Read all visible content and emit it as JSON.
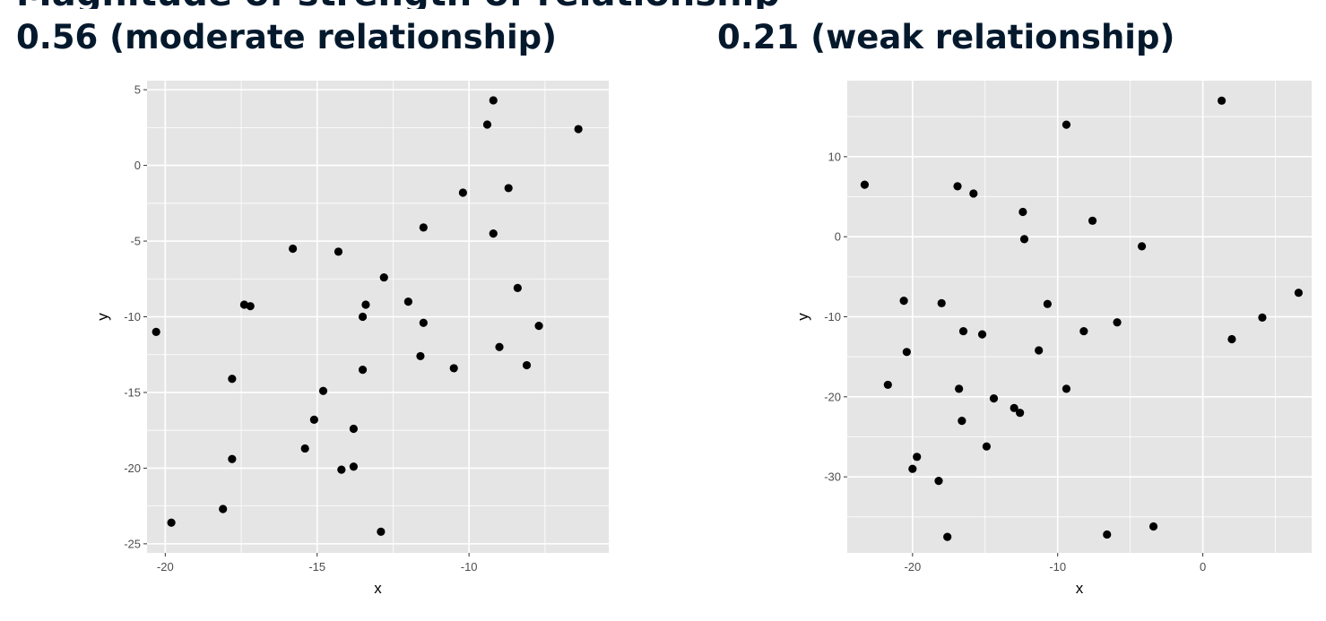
{
  "header": {
    "partial_heading": "Magnitude of strength of relationship"
  },
  "colors": {
    "panel_background": "#e5e5e5",
    "gridline": "#ffffff",
    "point": "#000000",
    "tick_text": "#4d4d4d",
    "title_text": "#05192d"
  },
  "chart_data": [
    {
      "type": "scatter",
      "title": "0.56 (moderate relationship)",
      "xlabel": "x",
      "ylabel": "y",
      "xlim": [
        -20.6,
        -5.4
      ],
      "ylim": [
        -25.6,
        5.6
      ],
      "xticks": [
        -20,
        -15,
        -10
      ],
      "xtick_labels": [
        "-20",
        "-15",
        "-10"
      ],
      "yticks": [
        5,
        0,
        -5,
        -10,
        -15,
        -20,
        -25
      ],
      "ytick_labels": [
        "5",
        "0",
        "-5",
        "-10",
        "-15",
        "-20",
        "-25"
      ],
      "grid": true,
      "points": [
        {
          "x": -20.3,
          "y": -11.0
        },
        {
          "x": -19.8,
          "y": -23.6
        },
        {
          "x": -18.1,
          "y": -22.7
        },
        {
          "x": -17.8,
          "y": -14.1
        },
        {
          "x": -17.8,
          "y": -19.4
        },
        {
          "x": -17.4,
          "y": -9.2
        },
        {
          "x": -17.2,
          "y": -9.3
        },
        {
          "x": -15.8,
          "y": -5.5
        },
        {
          "x": -15.4,
          "y": -18.7
        },
        {
          "x": -15.1,
          "y": -16.8
        },
        {
          "x": -14.8,
          "y": -14.9
        },
        {
          "x": -14.3,
          "y": -5.7
        },
        {
          "x": -14.2,
          "y": -20.1
        },
        {
          "x": -13.8,
          "y": -17.4
        },
        {
          "x": -13.8,
          "y": -19.9
        },
        {
          "x": -13.5,
          "y": -10.0
        },
        {
          "x": -13.5,
          "y": -13.5
        },
        {
          "x": -13.4,
          "y": -9.2
        },
        {
          "x": -12.9,
          "y": -24.2
        },
        {
          "x": -12.8,
          "y": -7.4
        },
        {
          "x": -12.0,
          "y": -9.0
        },
        {
          "x": -11.6,
          "y": -12.6
        },
        {
          "x": -11.5,
          "y": -4.1
        },
        {
          "x": -11.5,
          "y": -10.4
        },
        {
          "x": -10.5,
          "y": -13.4
        },
        {
          "x": -10.2,
          "y": -1.8
        },
        {
          "x": -9.4,
          "y": 2.7
        },
        {
          "x": -9.2,
          "y": 4.3
        },
        {
          "x": -9.2,
          "y": -4.5
        },
        {
          "x": -9.0,
          "y": -12.0
        },
        {
          "x": -8.7,
          "y": -1.5
        },
        {
          "x": -8.4,
          "y": -8.1
        },
        {
          "x": -8.1,
          "y": -13.2
        },
        {
          "x": -7.7,
          "y": -10.6
        },
        {
          "x": -6.4,
          "y": 2.4
        }
      ]
    },
    {
      "type": "scatter",
      "title": "0.21 (weak relationship)",
      "xlabel": "x",
      "ylabel": "y",
      "xlim": [
        -24.5,
        7.5
      ],
      "ylim": [
        -39.5,
        19.5
      ],
      "xticks": [
        -20,
        -10,
        0
      ],
      "xtick_labels": [
        "-20",
        "-10",
        "0"
      ],
      "yticks": [
        10,
        0,
        -10,
        -20,
        -30
      ],
      "ytick_labels": [
        "10",
        "0",
        "-10",
        "-20",
        "-30"
      ],
      "grid": true,
      "points": [
        {
          "x": -23.3,
          "y": 6.5
        },
        {
          "x": -21.7,
          "y": -18.5
        },
        {
          "x": -20.6,
          "y": -8.0
        },
        {
          "x": -20.4,
          "y": -14.4
        },
        {
          "x": -20.0,
          "y": -29.0
        },
        {
          "x": -19.7,
          "y": -27.5
        },
        {
          "x": -18.2,
          "y": -30.5
        },
        {
          "x": -18.0,
          "y": -8.3
        },
        {
          "x": -17.6,
          "y": -37.5
        },
        {
          "x": -16.9,
          "y": 6.3
        },
        {
          "x": -16.8,
          "y": -19.0
        },
        {
          "x": -16.6,
          "y": -23.0
        },
        {
          "x": -16.5,
          "y": -11.8
        },
        {
          "x": -15.8,
          "y": 5.4
        },
        {
          "x": -15.2,
          "y": -12.2
        },
        {
          "x": -14.9,
          "y": -26.2
        },
        {
          "x": -14.4,
          "y": -20.2
        },
        {
          "x": -13.0,
          "y": -21.4
        },
        {
          "x": -12.6,
          "y": -22.0
        },
        {
          "x": -12.4,
          "y": 3.1
        },
        {
          "x": -12.3,
          "y": -0.3
        },
        {
          "x": -11.3,
          "y": -14.2
        },
        {
          "x": -10.7,
          "y": -8.4
        },
        {
          "x": -9.4,
          "y": 14.0
        },
        {
          "x": -9.4,
          "y": -19.0
        },
        {
          "x": -8.2,
          "y": -11.8
        },
        {
          "x": -7.6,
          "y": 2.0
        },
        {
          "x": -6.6,
          "y": -37.2
        },
        {
          "x": -5.9,
          "y": -10.7
        },
        {
          "x": -4.2,
          "y": -1.2
        },
        {
          "x": -3.4,
          "y": -36.2
        },
        {
          "x": 1.3,
          "y": 17.0
        },
        {
          "x": 2.0,
          "y": -12.8
        },
        {
          "x": 4.1,
          "y": -10.1
        },
        {
          "x": 6.6,
          "y": -7.0
        }
      ]
    }
  ]
}
